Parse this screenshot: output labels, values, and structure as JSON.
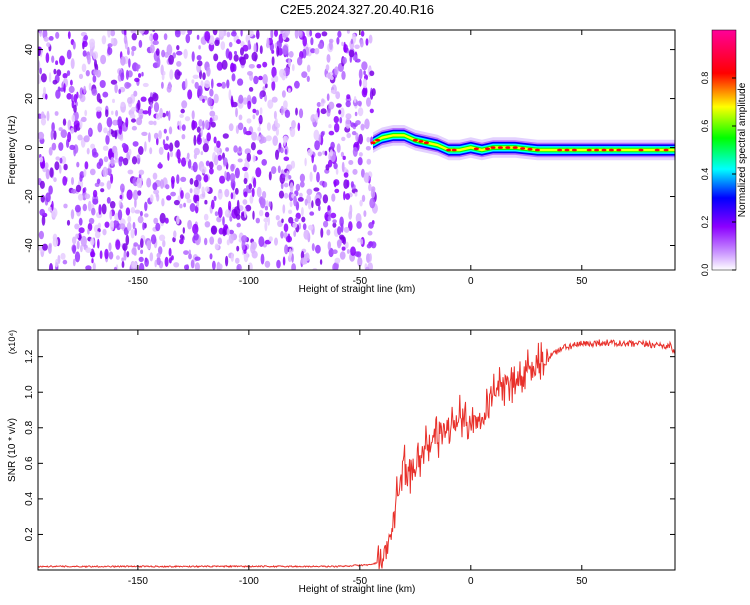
{
  "title": "C2E5.2024.327.20.40.R16",
  "chart_data": [
    {
      "type": "heatmap",
      "xlabel": "Height of straight line (km)",
      "ylabel": "Frequency (Hz)",
      "xlim": [
        -195,
        92
      ],
      "ylim": [
        -50,
        48
      ],
      "xticks": [
        -150,
        -100,
        -50,
        0,
        50
      ],
      "yticks": [
        -40,
        -20,
        0,
        20,
        40
      ],
      "noise_region_x": [
        -195,
        -43
      ],
      "ridge_x": [
        -44,
        -40,
        -35,
        -30,
        -25,
        -20,
        -15,
        -10,
        -5,
        0,
        5,
        10,
        20,
        30,
        40,
        50,
        60,
        70,
        80,
        92
      ],
      "ridge_freq": [
        2,
        4,
        5,
        5,
        3,
        2,
        1,
        -1,
        -1,
        0,
        -1,
        0,
        0,
        -1,
        -1,
        -1,
        -1,
        -1,
        -1,
        -1
      ],
      "colorbar": {
        "label": "Normalized spectral amplitude",
        "range": [
          0,
          1
        ],
        "ticks": [
          0.0,
          0.2,
          0.4,
          0.6,
          0.8
        ],
        "colors": [
          "#ffffff",
          "#8c00ff",
          "#0000ff",
          "#00ffff",
          "#00ff00",
          "#ffff00",
          "#ff0000",
          "#ff0099"
        ]
      }
    },
    {
      "type": "line",
      "xlabel": "Height of straight line (km)",
      "ylabel": "SNR (10 * v/v)",
      "scale_label": "(x10⁴)",
      "xlim": [
        -195,
        92
      ],
      "ylim": [
        0.0,
        1.35
      ],
      "xticks": [
        -150,
        -100,
        -50,
        0,
        50
      ],
      "yticks": [
        0.2,
        0.4,
        0.6,
        0.8,
        1.0,
        1.2
      ],
      "line_color": "#e8302a",
      "series": [
        {
          "x": [
            -195,
            -150,
            -100,
            -60,
            -45,
            -40,
            -38,
            -36,
            -34,
            -32,
            -30,
            -28,
            -25,
            -22,
            -20,
            -15,
            -10,
            -5,
            0,
            5,
            10,
            15,
            20,
            25,
            30,
            35,
            40,
            45,
            50,
            60,
            70,
            80,
            90,
            92
          ],
          "values": [
            0.02,
            0.02,
            0.02,
            0.02,
            0.03,
            0.05,
            0.1,
            0.2,
            0.35,
            0.5,
            0.6,
            0.55,
            0.6,
            0.65,
            0.7,
            0.75,
            0.8,
            0.85,
            0.82,
            0.9,
            1.0,
            1.05,
            1.05,
            1.1,
            1.15,
            1.2,
            1.24,
            1.26,
            1.27,
            1.28,
            1.27,
            1.27,
            1.26,
            1.22
          ]
        }
      ]
    }
  ]
}
